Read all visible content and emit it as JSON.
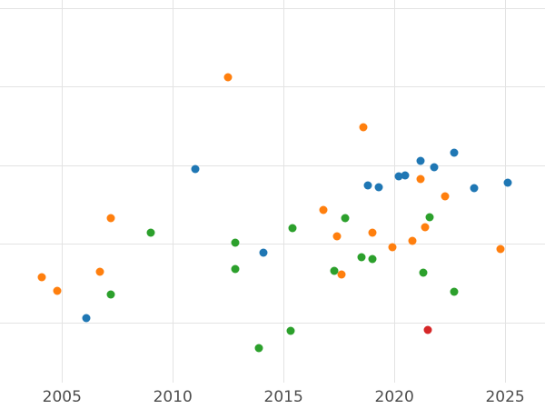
{
  "colors": {
    "background": "#ffffff",
    "gridline": "#e3e3e3",
    "tick_label": "#4d4d4d"
  },
  "chart_data": {
    "type": "scatter",
    "title": "",
    "xlabel": "",
    "ylabel": "",
    "legend": "none",
    "grid": "on",
    "x_ticks": [
      2005,
      2010,
      2015,
      2020,
      2025
    ],
    "x_tick_labels": [
      "2005",
      "2010",
      "2015",
      "2020",
      "2025"
    ],
    "xlim": [
      2002.2,
      2026.8
    ],
    "ylim": [
      0,
      100
    ],
    "y_units": "normalized 0-100 (no y-axis tick labels visible in image)",
    "y_gridlines": [
      16,
      37.1,
      58,
      78.9,
      100
    ],
    "series": [
      {
        "name": "orange-series",
        "color": "#ff7f0e",
        "points": [
          [
            2004.1,
            28.2
          ],
          [
            2004.8,
            24.5
          ],
          [
            2006.7,
            29.6
          ],
          [
            2007.2,
            43.9
          ],
          [
            2012.5,
            81.6
          ],
          [
            2016.8,
            46.1
          ],
          [
            2017.4,
            39.1
          ],
          [
            2017.6,
            28.9
          ],
          [
            2018.6,
            68.2
          ],
          [
            2019.0,
            40.0
          ],
          [
            2019.9,
            36.2
          ],
          [
            2020.8,
            37.9
          ],
          [
            2021.2,
            54.4
          ],
          [
            2021.4,
            41.5
          ],
          [
            2022.3,
            49.8
          ],
          [
            2024.8,
            35.7
          ]
        ]
      },
      {
        "name": "blue-series",
        "color": "#1f77b4",
        "points": [
          [
            2006.1,
            17.2
          ],
          [
            2011.0,
            57.0
          ],
          [
            2014.1,
            34.7
          ],
          [
            2018.8,
            52.7
          ],
          [
            2019.3,
            52.2
          ],
          [
            2020.2,
            55.1
          ],
          [
            2020.5,
            55.3
          ],
          [
            2021.2,
            59.2
          ],
          [
            2021.8,
            57.5
          ],
          [
            2022.7,
            61.4
          ],
          [
            2023.6,
            51.9
          ],
          [
            2025.1,
            53.4
          ]
        ]
      },
      {
        "name": "green-series",
        "color": "#2ca02c",
        "points": [
          [
            2007.2,
            23.5
          ],
          [
            2009.0,
            40.0
          ],
          [
            2012.8,
            37.4
          ],
          [
            2012.8,
            30.3
          ],
          [
            2013.9,
            9.2
          ],
          [
            2015.3,
            13.8
          ],
          [
            2015.4,
            41.3
          ],
          [
            2017.3,
            29.9
          ],
          [
            2017.8,
            43.9
          ],
          [
            2018.5,
            33.5
          ],
          [
            2019.0,
            33.0
          ],
          [
            2021.3,
            29.4
          ],
          [
            2021.6,
            44.2
          ],
          [
            2022.7,
            24.3
          ]
        ]
      },
      {
        "name": "red-series",
        "color": "#d62728",
        "points": [
          [
            2021.5,
            14.1
          ]
        ]
      }
    ]
  }
}
